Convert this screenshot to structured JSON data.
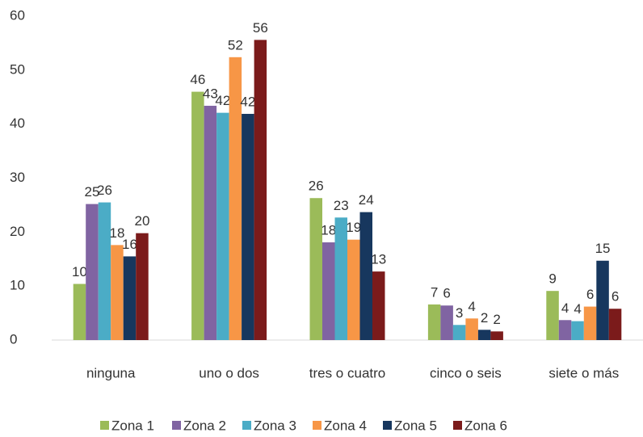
{
  "chart_data": {
    "type": "bar",
    "categories": [
      "ninguna",
      "uno o dos",
      "tres o cuatro",
      "cinco o seis",
      "siete o más"
    ],
    "series": [
      {
        "name": "Zona 1",
        "color": "#9bbb59",
        "values": [
          10.4,
          46.0,
          26.3,
          6.6,
          9.1
        ],
        "value_labels": [
          "10",
          "46",
          "26",
          "7",
          "9"
        ]
      },
      {
        "name": "Zona 2",
        "color": "#8064a2",
        "values": [
          25.2,
          43.4,
          18.1,
          6.4,
          3.7
        ],
        "value_labels": [
          "25",
          "43",
          "18",
          "6",
          "4"
        ]
      },
      {
        "name": "Zona 3",
        "color": "#4bacc6",
        "values": [
          25.5,
          42.1,
          22.7,
          2.8,
          3.5
        ],
        "value_labels": [
          "26",
          "42",
          "23",
          "3",
          "4"
        ]
      },
      {
        "name": "Zona 4",
        "color": "#f79646",
        "values": [
          17.6,
          52.4,
          18.6,
          4.0,
          6.2
        ],
        "value_labels": [
          "18",
          "52",
          "19",
          "4",
          "6"
        ]
      },
      {
        "name": "Zona 5",
        "color": "#17375e",
        "values": [
          15.5,
          41.9,
          23.7,
          1.9,
          14.7
        ],
        "value_labels": [
          "16",
          "42",
          "24",
          "2",
          "15"
        ]
      },
      {
        "name": "Zona 6",
        "color": "#7b1b1b",
        "values": [
          19.8,
          55.6,
          12.7,
          1.6,
          5.8
        ],
        "value_labels": [
          "20",
          "56",
          "13",
          "2",
          "6"
        ]
      }
    ],
    "ylim": [
      0,
      60
    ],
    "yticks": [
      0,
      10,
      20,
      30,
      40,
      50,
      60
    ],
    "grid": false,
    "legend": "bottom"
  }
}
